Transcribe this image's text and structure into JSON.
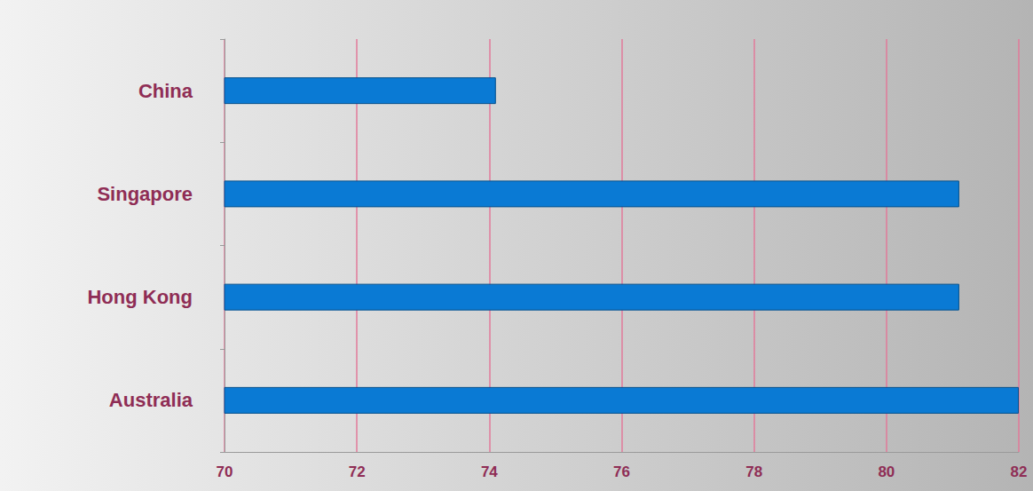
{
  "chart_data": {
    "type": "bar",
    "orientation": "horizontal",
    "categories": [
      "China",
      "Singapore",
      "Hong Kong",
      "Australia"
    ],
    "values": [
      74.1,
      81.1,
      81.1,
      82
    ],
    "color": "#0a7ad4",
    "xlim": [
      70,
      82
    ],
    "xticks": [
      70,
      72,
      74,
      76,
      78,
      80,
      82
    ],
    "grid": true
  }
}
